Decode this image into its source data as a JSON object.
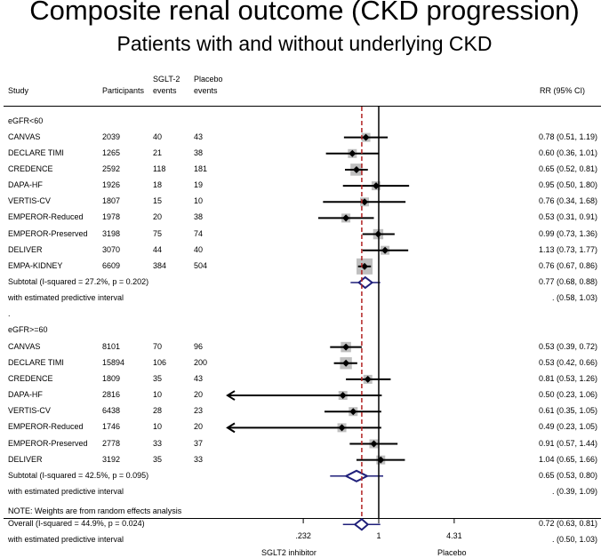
{
  "title": "Composite renal outcome (CKD progression)",
  "subtitle": "Patients with and without underlying CKD",
  "headers": {
    "study": "Study",
    "participants": "Participants",
    "sglt2_line1": "SGLT-2",
    "sglt2_line2": "events",
    "placebo_line1": "Placebo",
    "placebo_line2": "events",
    "rr": "RR (95% CI)"
  },
  "axis": {
    "ticks": [
      ".232",
      "1",
      "4.31"
    ],
    "left_label": "SGLT2 inhibitor",
    "right_label": "Placebo",
    "scale": "log",
    "range": [
      0.232,
      4.31
    ],
    "null_line": 1
  },
  "note": "NOTE: Weights are from random effects analysis",
  "colors": {
    "pooled_line": "#b22222",
    "diamond": "#1f1f7a",
    "box": "#bfbfbf"
  },
  "chart_data": {
    "type": "forest",
    "measure": "RR (95% CI)",
    "groups": [
      {
        "label": "eGFR<60",
        "studies": [
          {
            "name": "CANVAS",
            "participants": "2039",
            "sglt2": "40",
            "placebo": "43",
            "rr": 0.78,
            "lo": 0.51,
            "hi": 1.19,
            "text": "0.78 (0.51, 1.19)"
          },
          {
            "name": "DECLARE TIMI",
            "participants": "1265",
            "sglt2": "21",
            "placebo": "38",
            "rr": 0.6,
            "lo": 0.36,
            "hi": 1.01,
            "text": "0.60 (0.36, 1.01)"
          },
          {
            "name": "CREDENCE",
            "participants": "2592",
            "sglt2": "118",
            "placebo": "181",
            "rr": 0.65,
            "lo": 0.52,
            "hi": 0.81,
            "text": "0.65 (0.52, 0.81)"
          },
          {
            "name": "DAPA-HF",
            "participants": "1926",
            "sglt2": "18",
            "placebo": "19",
            "rr": 0.95,
            "lo": 0.5,
            "hi": 1.8,
            "text": "0.95 (0.50, 1.80)"
          },
          {
            "name": "VERTIS-CV",
            "participants": "1807",
            "sglt2": "15",
            "placebo": "10",
            "rr": 0.76,
            "lo": 0.34,
            "hi": 1.68,
            "text": "0.76 (0.34, 1.68)"
          },
          {
            "name": "EMPEROR-Reduced",
            "participants": "1978",
            "sglt2": "20",
            "placebo": "38",
            "rr": 0.53,
            "lo": 0.31,
            "hi": 0.91,
            "text": "0.53 (0.31, 0.91)"
          },
          {
            "name": "EMPEROR-Preserved",
            "participants": "3198",
            "sglt2": "75",
            "placebo": "74",
            "rr": 0.99,
            "lo": 0.73,
            "hi": 1.36,
            "text": "0.99 (0.73, 1.36)"
          },
          {
            "name": "DELIVER",
            "participants": "3070",
            "sglt2": "44",
            "placebo": "40",
            "rr": 1.13,
            "lo": 0.73,
            "hi": 1.77,
            "text": "1.13 (0.73, 1.77)"
          },
          {
            "name": "EMPA-KIDNEY",
            "participants": "6609",
            "sglt2": "384",
            "placebo": "504",
            "rr": 0.76,
            "lo": 0.67,
            "hi": 0.86,
            "text": "0.76 (0.67, 0.86)"
          }
        ],
        "subtotal": {
          "label": "Subtotal  (I-squared = 27.2%, p = 0.202)",
          "rr": 0.77,
          "lo": 0.68,
          "hi": 0.88,
          "text": "0.77 (0.68, 0.88)"
        },
        "predictive": {
          "label": "with estimated predictive interval",
          "lo": 0.58,
          "hi": 1.03,
          "text": ".       (0.58, 1.03)"
        }
      },
      {
        "label": "eGFR>=60",
        "studies": [
          {
            "name": "CANVAS",
            "participants": "8101",
            "sglt2": "70",
            "placebo": "96",
            "rr": 0.53,
            "lo": 0.39,
            "hi": 0.72,
            "text": "0.53 (0.39, 0.72)"
          },
          {
            "name": "DECLARE TIMI",
            "participants": "15894",
            "sglt2": "106",
            "placebo": "200",
            "rr": 0.53,
            "lo": 0.42,
            "hi": 0.66,
            "text": "0.53 (0.42, 0.66)"
          },
          {
            "name": "CREDENCE",
            "participants": "1809",
            "sglt2": "35",
            "placebo": "43",
            "rr": 0.81,
            "lo": 0.53,
            "hi": 1.26,
            "text": "0.81 (0.53, 1.26)"
          },
          {
            "name": "DAPA-HF",
            "participants": "2816",
            "sglt2": "10",
            "placebo": "20",
            "rr": 0.5,
            "lo": 0.23,
            "hi": 1.06,
            "text": "0.50 (0.23, 1.06)"
          },
          {
            "name": "VERTIS-CV",
            "participants": "6438",
            "sglt2": "28",
            "placebo": "23",
            "rr": 0.61,
            "lo": 0.35,
            "hi": 1.05,
            "text": "0.61 (0.35, 1.05)"
          },
          {
            "name": "EMPEROR-Reduced",
            "participants": "1746",
            "sglt2": "10",
            "placebo": "20",
            "rr": 0.49,
            "lo": 0.23,
            "hi": 1.05,
            "text": "0.49 (0.23, 1.05)"
          },
          {
            "name": "EMPEROR-Preserved",
            "participants": "2778",
            "sglt2": "33",
            "placebo": "37",
            "rr": 0.91,
            "lo": 0.57,
            "hi": 1.44,
            "text": "0.91 (0.57, 1.44)"
          },
          {
            "name": "DELIVER",
            "participants": "3192",
            "sglt2": "35",
            "placebo": "33",
            "rr": 1.04,
            "lo": 0.65,
            "hi": 1.66,
            "text": "1.04 (0.65, 1.66)"
          }
        ],
        "subtotal": {
          "label": "Subtotal  (I-squared = 42.5%, p = 0.095)",
          "rr": 0.65,
          "lo": 0.53,
          "hi": 0.8,
          "text": "0.65 (0.53, 0.80)"
        },
        "predictive": {
          "label": "with estimated predictive interval",
          "lo": 0.39,
          "hi": 1.09,
          "text": ".       (0.39, 1.09)"
        }
      }
    ],
    "overall": {
      "label": "Overall  (I-squared = 44.9%, p = 0.024)",
      "rr": 0.72,
      "lo": 0.63,
      "hi": 0.81,
      "text": "0.72 (0.63, 0.81)"
    },
    "overall_predictive": {
      "label": "with estimated predictive interval",
      "lo": 0.5,
      "hi": 1.03,
      "text": ".       (0.50, 1.03)"
    }
  }
}
